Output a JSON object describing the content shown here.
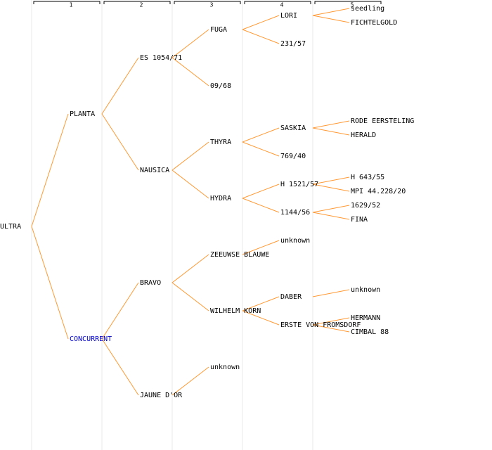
{
  "columns": [
    "1",
    "2",
    "3",
    "4",
    "5"
  ],
  "generations": [
    [
      "ULTRA"
    ],
    [
      "PLANTA",
      "CONCURRENT"
    ],
    [
      "ES 1054/71",
      "NAUSICA",
      "BRAVO",
      "JAUNE D'OR"
    ],
    [
      "FUGA",
      "09/68",
      "THYRA",
      "HYDRA",
      "ZEEUWSE BLAUWE",
      "WILHELM KORN",
      "unknown",
      null
    ],
    [
      "LORI",
      "231/57",
      null,
      null,
      "SASKIA",
      "769/40",
      "H 1521/57",
      "1144/56",
      "unknown",
      null,
      "DABER",
      "ERSTE VON FROMSDORF",
      null,
      null,
      null,
      null
    ],
    [
      "seedling",
      "FICHTELGOLD",
      null,
      null,
      null,
      null,
      null,
      null,
      "RODE EERSTELING",
      "HERALD",
      null,
      null,
      "H 643/55",
      "MPI 44.228/20",
      "1629/52",
      "FINA",
      null,
      null,
      null,
      null,
      "unknown",
      null,
      "HERMANN",
      "CIMBAL 88",
      null,
      null,
      null,
      null,
      null,
      null,
      null,
      null
    ]
  ]
}
